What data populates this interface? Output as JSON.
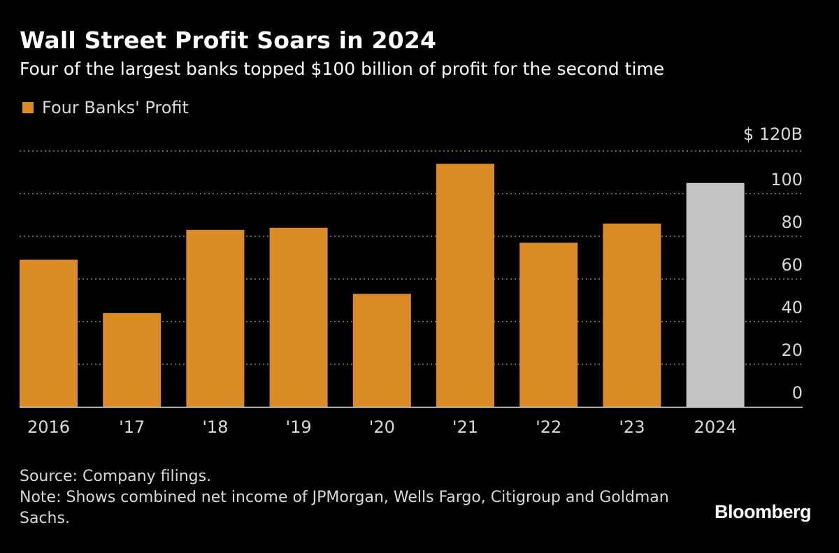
{
  "header": {
    "title": "Wall Street Profit Soars in 2024",
    "subtitle": "Four of the largest banks topped $100 billion of profit for the second time"
  },
  "legend": {
    "label": "Four Banks' Profit"
  },
  "colors": {
    "background": "#000000",
    "bar": "#dc8c27",
    "highlight_bar": "#c4c4c4",
    "gridline": "#8a8a8a",
    "text": "#ffffff",
    "muted_text": "#d8d8d8"
  },
  "chart_data": {
    "type": "bar",
    "title": "Wall Street Profit Soars in 2024",
    "subtitle": "Four of the largest banks topped $100 billion of profit for the second time",
    "xlabel": "",
    "ylabel": "",
    "series": [
      {
        "name": "Four Banks' Profit",
        "values": [
          69,
          44,
          83,
          84,
          53,
          114,
          77,
          86,
          105
        ]
      }
    ],
    "categories": [
      "2016",
      "'17",
      "'18",
      "'19",
      "'20",
      "'21",
      "'22",
      "'23",
      "2024"
    ],
    "highlight_categories": [
      "2024"
    ],
    "y_ticks": [
      0,
      20,
      40,
      60,
      80,
      100,
      120
    ],
    "y_tick_labels": [
      "0",
      "20",
      "40",
      "60",
      "80",
      "100",
      "$ 120B"
    ],
    "ylim": [
      0,
      120
    ],
    "units": "USD billions",
    "grid": true,
    "legend_position": "top-left"
  },
  "footer": {
    "source": "Source: Company filings.",
    "note": "Note: Shows combined net income of JPMorgan, Wells Fargo, Citigroup and Goldman Sachs."
  },
  "brand": {
    "name": "Bloomberg"
  }
}
